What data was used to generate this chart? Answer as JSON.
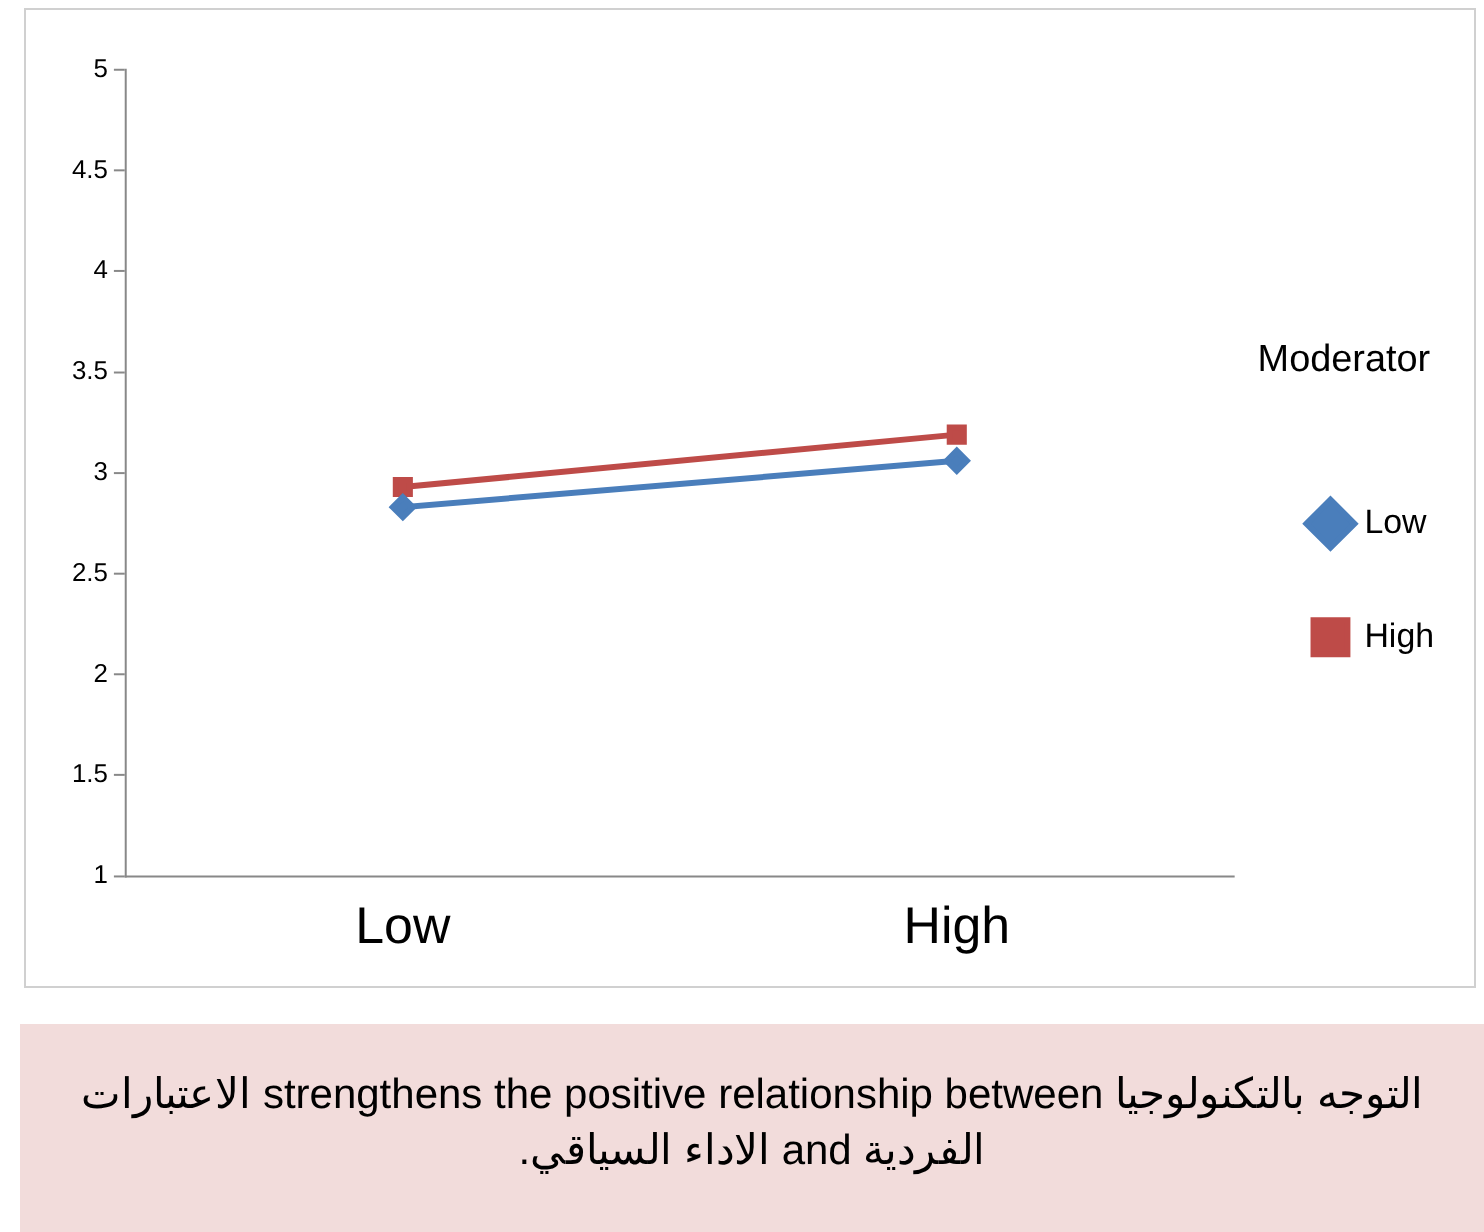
{
  "chart_data": {
    "type": "line",
    "categories": [
      "Low",
      "High"
    ],
    "series": [
      {
        "name": "Low",
        "color": "#4a7ebb",
        "values": [
          2.83,
          3.06
        ],
        "marker": "diamond"
      },
      {
        "name": "High",
        "color": "#be4b48",
        "values": [
          2.93,
          3.19
        ],
        "marker": "square"
      }
    ],
    "ylim": [
      1,
      5
    ],
    "yticks": [
      1,
      1.5,
      2,
      2.5,
      3,
      3.5,
      4,
      4.5,
      5
    ],
    "grid": false,
    "legend": "right",
    "legend_title": "Moderator",
    "line_style": "solid",
    "annotations": [
      "التوجه بالتكنولوجيا strengthens the positive relationship between الاعتبارات الفردية and الاداء السياقي."
    ]
  }
}
